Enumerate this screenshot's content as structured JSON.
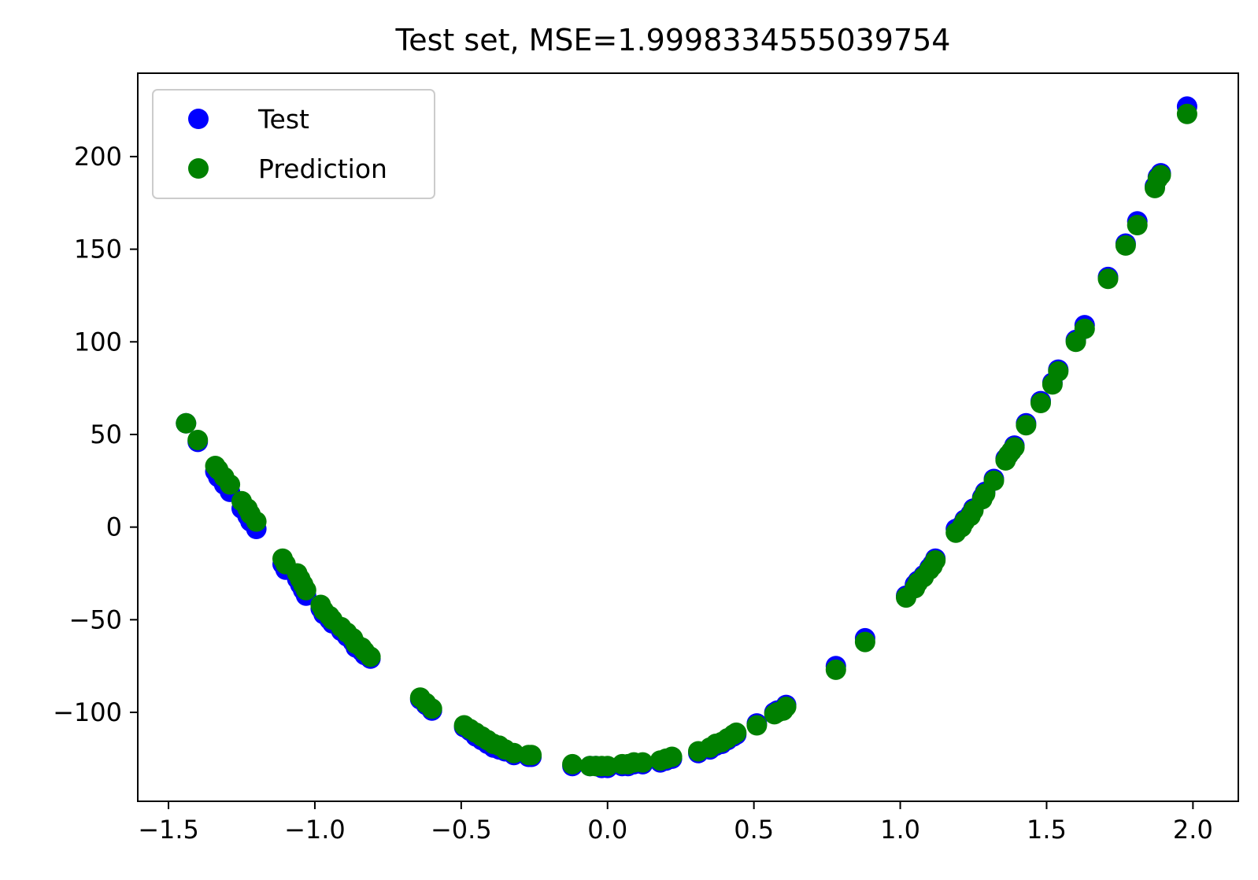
{
  "chart_data": {
    "type": "scatter",
    "title": "Test set, MSE=1.9998334555039754",
    "xlabel": "",
    "ylabel": "",
    "xlim": [
      -1.605,
      2.155
    ],
    "ylim": [
      -148,
      245
    ],
    "xticks": [
      -1.5,
      -1.0,
      -0.5,
      0.0,
      0.5,
      1.0,
      1.5,
      2.0
    ],
    "xtick_labels": [
      "−1.5",
      "−1.0",
      "−0.5",
      "0.0",
      "0.5",
      "1.0",
      "1.5",
      "2.0"
    ],
    "yticks": [
      -100,
      -50,
      0,
      50,
      100,
      150,
      200
    ],
    "ytick_labels": [
      "−100",
      "−50",
      "0",
      "50",
      "100",
      "150",
      "200"
    ],
    "grid": false,
    "legend_position": "top-left",
    "series": [
      {
        "name": "Test",
        "color": "#0000ff",
        "x": [
          -1.44,
          -1.4,
          -1.34,
          -1.33,
          -1.31,
          -1.29,
          -1.25,
          -1.23,
          -1.22,
          -1.2,
          -1.11,
          -1.1,
          -1.06,
          -1.05,
          -1.04,
          -1.03,
          -0.98,
          -0.97,
          -0.95,
          -0.94,
          -0.91,
          -0.89,
          -0.87,
          -0.86,
          -0.84,
          -0.83,
          -0.81,
          -0.64,
          -0.62,
          -0.6,
          -0.49,
          -0.47,
          -0.45,
          -0.43,
          -0.41,
          -0.39,
          -0.37,
          -0.35,
          -0.32,
          -0.27,
          -0.26,
          -0.12,
          -0.06,
          -0.04,
          -0.02,
          0.0,
          0.05,
          0.07,
          0.09,
          0.12,
          0.18,
          0.2,
          0.22,
          0.31,
          0.35,
          0.37,
          0.39,
          0.41,
          0.43,
          0.44,
          0.51,
          0.57,
          0.58,
          0.6,
          0.61,
          0.78,
          0.88,
          1.02,
          1.05,
          1.06,
          1.08,
          1.1,
          1.11,
          1.12,
          1.19,
          1.21,
          1.22,
          1.24,
          1.25,
          1.28,
          1.29,
          1.32,
          1.36,
          1.37,
          1.38,
          1.39,
          1.43,
          1.48,
          1.52,
          1.54,
          1.6,
          1.63,
          1.71,
          1.77,
          1.81,
          1.87,
          1.88,
          1.89,
          1.98
        ],
        "y": [
          56,
          46,
          30,
          27,
          23,
          19,
          10,
          6,
          3,
          -1,
          -20,
          -23,
          -28,
          -31,
          -34,
          -37,
          -44,
          -47,
          -50,
          -52,
          -56,
          -59,
          -62,
          -65,
          -67,
          -69,
          -71,
          -93,
          -96,
          -99,
          -108,
          -110,
          -113,
          -115,
          -117,
          -119,
          -120,
          -121,
          -123,
          -124,
          -124,
          -129,
          -129,
          -129,
          -130,
          -130,
          -129,
          -129,
          -128,
          -128,
          -127,
          -126,
          -125,
          -122,
          -120,
          -118,
          -117,
          -115,
          -113,
          -112,
          -106,
          -100,
          -99,
          -98,
          -96,
          -75,
          -60,
          -37,
          -31,
          -29,
          -26,
          -22,
          -20,
          -17,
          -1,
          1,
          4,
          7,
          10,
          16,
          19,
          26,
          37,
          39,
          41,
          44,
          56,
          68,
          78,
          85,
          101,
          109,
          135,
          153,
          165,
          184,
          189,
          191,
          227
        ]
      },
      {
        "name": "Prediction",
        "color": "#008000",
        "x": [
          -1.44,
          -1.4,
          -1.34,
          -1.33,
          -1.31,
          -1.29,
          -1.25,
          -1.23,
          -1.22,
          -1.2,
          -1.11,
          -1.1,
          -1.06,
          -1.05,
          -1.04,
          -1.03,
          -0.98,
          -0.97,
          -0.95,
          -0.94,
          -0.91,
          -0.89,
          -0.87,
          -0.86,
          -0.84,
          -0.83,
          -0.81,
          -0.64,
          -0.62,
          -0.6,
          -0.49,
          -0.47,
          -0.45,
          -0.43,
          -0.41,
          -0.39,
          -0.37,
          -0.35,
          -0.32,
          -0.27,
          -0.26,
          -0.12,
          -0.06,
          -0.04,
          -0.02,
          0.0,
          0.05,
          0.07,
          0.09,
          0.12,
          0.18,
          0.2,
          0.22,
          0.31,
          0.35,
          0.37,
          0.39,
          0.41,
          0.43,
          0.44,
          0.51,
          0.57,
          0.58,
          0.6,
          0.61,
          0.78,
          0.88,
          1.02,
          1.05,
          1.06,
          1.08,
          1.1,
          1.11,
          1.12,
          1.19,
          1.21,
          1.22,
          1.24,
          1.25,
          1.28,
          1.29,
          1.32,
          1.36,
          1.37,
          1.38,
          1.39,
          1.43,
          1.48,
          1.52,
          1.54,
          1.6,
          1.63,
          1.71,
          1.77,
          1.81,
          1.87,
          1.88,
          1.89,
          1.98
        ],
        "y": [
          56,
          47,
          33,
          31,
          27,
          23,
          14,
          10,
          7,
          3,
          -17,
          -20,
          -25,
          -28,
          -31,
          -34,
          -42,
          -45,
          -48,
          -50,
          -54,
          -57,
          -60,
          -63,
          -65,
          -67,
          -70,
          -92,
          -95,
          -98,
          -107,
          -109,
          -111,
          -113,
          -115,
          -117,
          -118,
          -120,
          -122,
          -123,
          -123,
          -128,
          -129,
          -129,
          -129,
          -129,
          -128,
          -128,
          -127,
          -127,
          -126,
          -125,
          -124,
          -121,
          -119,
          -117,
          -116,
          -114,
          -112,
          -111,
          -107,
          -101,
          -100,
          -99,
          -97,
          -77,
          -62,
          -38,
          -33,
          -30,
          -27,
          -23,
          -21,
          -18,
          -3,
          0,
          3,
          6,
          9,
          15,
          18,
          25,
          36,
          39,
          41,
          43,
          55,
          67,
          77,
          84,
          100,
          107,
          134,
          152,
          163,
          183,
          188,
          190,
          223
        ]
      }
    ]
  }
}
